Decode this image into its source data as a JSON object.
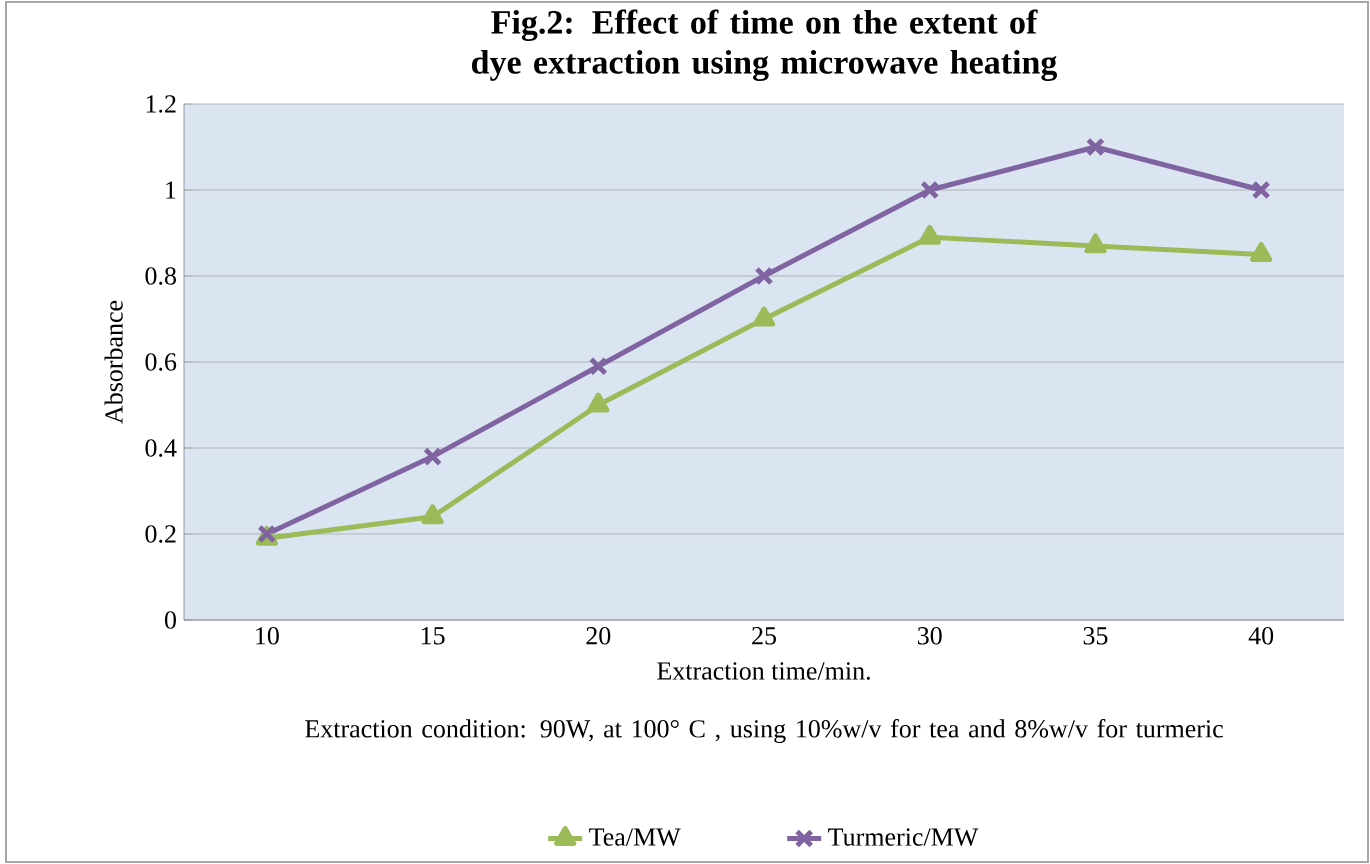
{
  "chart_data": {
    "type": "line",
    "title": "Fig.2: Effect of time on the extent of dye extraction using microwave heating",
    "xlabel": "Extraction time/min.",
    "ylabel": "Absorbance",
    "annotations": [
      "Extraction condition: 90W, at 100° C , using 10%w/v for tea and 8%w/v for turmeric"
    ],
    "categories": [
      "10",
      "15",
      "20",
      "25",
      "30",
      "35",
      "40"
    ],
    "series": [
      {
        "name": "Tea/MW",
        "color": "#9bbb59",
        "marker": "triangle",
        "values": [
          0.19,
          0.24,
          0.5,
          0.7,
          0.89,
          0.87,
          0.85
        ]
      },
      {
        "name": "Turmeric/MW",
        "color": "#8064a2",
        "marker": "cross",
        "values": [
          0.2,
          0.38,
          0.59,
          0.8,
          1.0,
          1.1,
          1.0
        ]
      }
    ],
    "ylim": [
      0,
      1.2
    ],
    "yticks": [
      0,
      0.2,
      0.4,
      0.6,
      0.8,
      1,
      1.2
    ],
    "grid": "y",
    "legend": "bottom",
    "line_style": "solid"
  }
}
